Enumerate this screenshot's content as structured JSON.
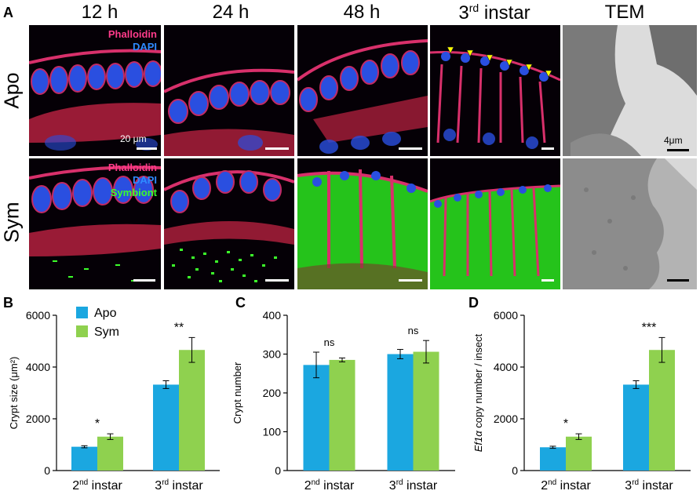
{
  "panel_a": {
    "letter": "A",
    "columns": [
      {
        "main": "12 h",
        "sup": ""
      },
      {
        "main": "24 h",
        "sup": ""
      },
      {
        "main": "48 h",
        "sup": ""
      },
      {
        "main": "3",
        "sup": "rd",
        "rest": " instar"
      },
      {
        "main": "TEM",
        "sup": ""
      }
    ],
    "rows": [
      "Apo",
      "Sym"
    ],
    "apo_labels": {
      "phalloidin": "Phalloidin",
      "dapi": "DAPI"
    },
    "sym_labels": {
      "phalloidin": "Phalloidin",
      "dapi": "DAPI",
      "symbiont": "Symbiont"
    },
    "scale_light": "20 μm",
    "scale_tem": "4μm",
    "colors": {
      "phalloidin": "#ff3b8a",
      "dapi": "#2f6dff",
      "symbiont": "#3cff2a",
      "arrowhead": "#ffff00"
    }
  },
  "legend": {
    "apo": "Apo",
    "sym": "Sym",
    "apo_color": "#1ba7e0",
    "sym_color": "#8fd14f"
  },
  "chart_data": [
    {
      "letter": "B",
      "type": "bar",
      "categories": [
        "2nd instar",
        "3rd instar"
      ],
      "category_parts": [
        [
          "2",
          "nd",
          " instar"
        ],
        [
          "3",
          "rd",
          " instar"
        ]
      ],
      "series": [
        {
          "name": "Apo",
          "values": [
            920,
            3320
          ],
          "errors": [
            40,
            150
          ]
        },
        {
          "name": "Sym",
          "values": [
            1310,
            4660
          ],
          "errors": [
            110,
            480
          ]
        }
      ],
      "ylabel": "Crypt size (μm²)",
      "ylim": [
        0,
        6000
      ],
      "yticks": [
        "0",
        "2000",
        "4000",
        "6000"
      ],
      "yticks_values": [
        0,
        2000,
        4000,
        6000
      ],
      "significance": [
        "*",
        "**"
      ]
    },
    {
      "letter": "C",
      "type": "bar",
      "categories": [
        "2nd instar",
        "3rd instar"
      ],
      "category_parts": [
        [
          "2",
          "nd",
          " instar"
        ],
        [
          "3",
          "rd",
          " instar"
        ]
      ],
      "series": [
        {
          "name": "Apo",
          "values": [
            272,
            300
          ],
          "errors": [
            33,
            12
          ]
        },
        {
          "name": "Sym",
          "values": [
            285,
            306
          ],
          "errors": [
            5,
            29
          ]
        }
      ],
      "ylabel": "Crypt number",
      "ylim": [
        0,
        400
      ],
      "yticks": [
        "0",
        "100",
        "200",
        "300",
        "400"
      ],
      "yticks_values": [
        0,
        100,
        200,
        300,
        400
      ],
      "significance": [
        "ns",
        "ns"
      ]
    },
    {
      "letter": "D",
      "type": "bar",
      "categories": [
        "2nd instar",
        "3rd instar"
      ],
      "category_parts": [
        [
          "2",
          "nd",
          " instar"
        ],
        [
          "3",
          "rd",
          " instar"
        ]
      ],
      "series": [
        {
          "name": "Apo",
          "values": [
            900,
            3320
          ],
          "errors": [
            40,
            150
          ]
        },
        {
          "name": "Sym",
          "values": [
            1310,
            4660
          ],
          "errors": [
            110,
            480
          ]
        }
      ],
      "ylabel": "Ef1α copy number / insect",
      "ylabel_italic": "Ef1α",
      "ylabel_rest": " copy number / insect",
      "ylim": [
        0,
        6000
      ],
      "yticks": [
        "0",
        "2000",
        "4000",
        "6000"
      ],
      "yticks_values": [
        0,
        2000,
        4000,
        6000
      ],
      "significance": [
        "*",
        "***"
      ]
    }
  ]
}
